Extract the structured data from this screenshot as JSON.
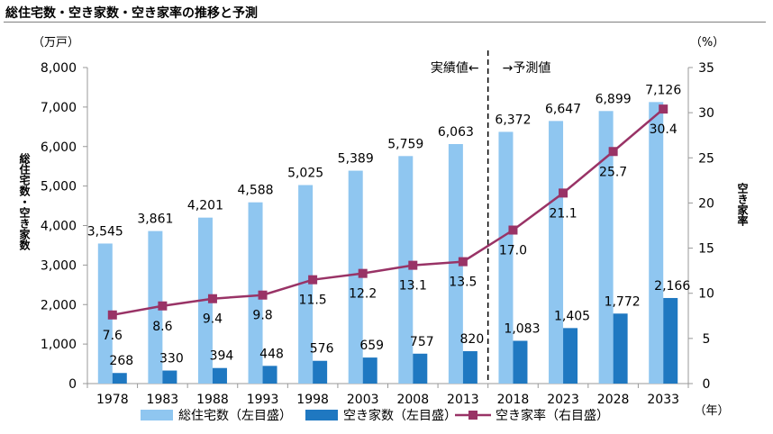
{
  "title": "総住宅数・空き家数・空き家率の推移と予測",
  "chart_data": {
    "type": "bar+line",
    "categories": [
      "1978",
      "1983",
      "1988",
      "1993",
      "1998",
      "2003",
      "2008",
      "2013",
      "2018",
      "2023",
      "2028",
      "2033"
    ],
    "series": [
      {
        "name": "総住宅数（左目盛）",
        "type": "bar",
        "axis": "left",
        "color": "#8fc6f0",
        "values": [
          3545,
          3861,
          4201,
          4588,
          5025,
          5389,
          5759,
          6063,
          6372,
          6647,
          6899,
          7126
        ],
        "labels": [
          "3,545",
          "3,861",
          "4,201",
          "4,588",
          "5,025",
          "5,389",
          "5,759",
          "6,063",
          "6,372",
          "6,647",
          "6,899",
          "7,126"
        ]
      },
      {
        "name": "空き家数（左目盛）",
        "type": "bar",
        "axis": "left",
        "color": "#1f78c1",
        "values": [
          268,
          330,
          394,
          448,
          576,
          659,
          757,
          820,
          1083,
          1405,
          1772,
          2166
        ],
        "labels": [
          "268",
          "330",
          "394",
          "448",
          "576",
          "659",
          "757",
          "820",
          "1,083",
          "1,405",
          "1,772",
          "2,166"
        ]
      },
      {
        "name": "空き家率（右目盛）",
        "type": "line",
        "axis": "right",
        "color": "#993366",
        "values": [
          7.6,
          8.6,
          9.4,
          9.8,
          11.5,
          12.2,
          13.1,
          13.5,
          17.0,
          21.1,
          25.7,
          30.4
        ],
        "labels": [
          "7.6",
          "8.6",
          "9.4",
          "9.8",
          "11.5",
          "12.2",
          "13.1",
          "13.5",
          "17.0",
          "21.1",
          "25.7",
          "30.4"
        ]
      }
    ],
    "y_left": {
      "unit": "（万戸）",
      "label": "総住宅数・空き家数",
      "ylim": [
        0,
        8000
      ],
      "ticks": [
        "0",
        "1,000",
        "2,000",
        "3,000",
        "4,000",
        "5,000",
        "6,000",
        "7,000",
        "8,000"
      ]
    },
    "y_right": {
      "unit": "（%）",
      "label": "空き家率",
      "ylim": [
        0,
        35
      ],
      "ticks": [
        "0",
        "5",
        "10",
        "15",
        "20",
        "25",
        "30",
        "35"
      ]
    },
    "x_unit": "（年）",
    "annotations": {
      "actual": "実績値←",
      "forecast": "→予測値"
    },
    "divider_after_index": 7,
    "grid": false,
    "legend_position": "bottom"
  }
}
